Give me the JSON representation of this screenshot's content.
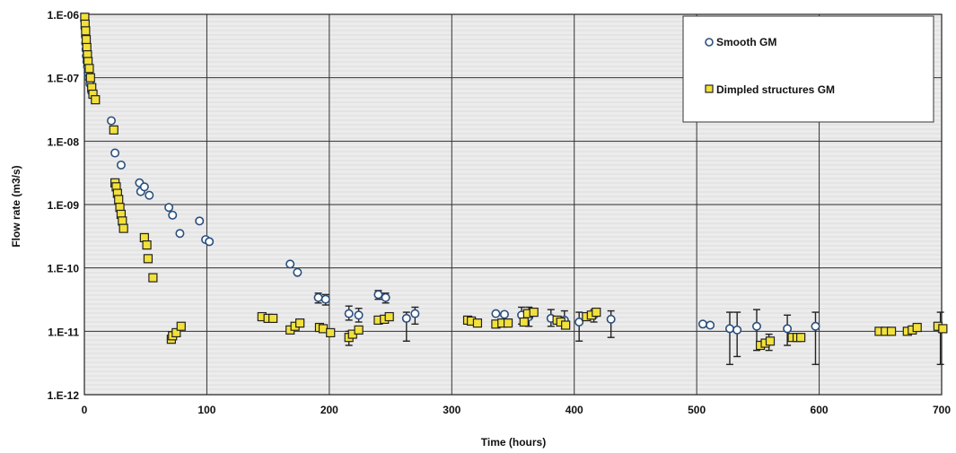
{
  "chart_data": {
    "type": "scatter",
    "title": "",
    "xlabel": "Time  (hours)",
    "ylabel": "Flow rate (m3/s)",
    "xlim": [
      0,
      700
    ],
    "ylim": [
      1e-12,
      1e-06
    ],
    "yscale": "log",
    "grid": true,
    "legend_position": "top-right",
    "x_ticks": [
      0,
      100,
      200,
      300,
      400,
      500,
      600,
      700
    ],
    "x_tick_labels": [
      "0",
      "100",
      "200",
      "300",
      "400",
      "500",
      "600",
      "700"
    ],
    "y_ticks": [
      1e-12,
      1e-11,
      1e-10,
      1e-09,
      1e-08,
      1e-07,
      1e-06
    ],
    "y_tick_labels": [
      "1.E-12",
      "1.E-11",
      "1.E-10",
      "1.E-09",
      "1.E-08",
      "1.E-07",
      "1.E-06"
    ],
    "colors": {
      "smooth_stroke": "#2a4f7f",
      "smooth_fill": "#ffffff",
      "dimpled_stroke": "#222222",
      "dimpled_fill": "#f2e13a",
      "grid": "#333333",
      "plot_background": "#ececec"
    },
    "series": [
      {
        "name": "Smooth GM",
        "marker": "circle",
        "points": [
          {
            "x": 0.3,
            "y": 8e-07
          },
          {
            "x": 0.5,
            "y": 6e-07
          },
          {
            "x": 0.8,
            "y": 4.5e-07
          },
          {
            "x": 1.0,
            "y": 3.5e-07
          },
          {
            "x": 1.3,
            "y": 2.8e-07
          },
          {
            "x": 1.6,
            "y": 2.2e-07
          },
          {
            "x": 2.0,
            "y": 1.8e-07
          },
          {
            "x": 2.5,
            "y": 1.5e-07
          },
          {
            "x": 3.0,
            "y": 1.2e-07
          },
          {
            "x": 3.5,
            "y": 1e-07
          },
          {
            "x": 4.5,
            "y": 8e-08
          },
          {
            "x": 6.0,
            "y": 6e-08
          },
          {
            "x": 22,
            "y": 2.1e-08
          },
          {
            "x": 25,
            "y": 6.5e-09
          },
          {
            "x": 30,
            "y": 4.2e-09
          },
          {
            "x": 45,
            "y": 2.2e-09
          },
          {
            "x": 46,
            "y": 1.6e-09
          },
          {
            "x": 49,
            "y": 1.9e-09
          },
          {
            "x": 53,
            "y": 1.4e-09
          },
          {
            "x": 69,
            "y": 9e-10
          },
          {
            "x": 72,
            "y": 6.8e-10
          },
          {
            "x": 78,
            "y": 3.5e-10
          },
          {
            "x": 94,
            "y": 5.5e-10
          },
          {
            "x": 99,
            "y": 2.8e-10
          },
          {
            "x": 102,
            "y": 2.6e-10
          },
          {
            "x": 168,
            "y": 1.15e-10
          },
          {
            "x": 174,
            "y": 8.5e-11
          },
          {
            "x": 191,
            "y": 3.4e-11,
            "err": [
              2.8e-11,
              4e-11
            ]
          },
          {
            "x": 197,
            "y": 3.2e-11,
            "err": [
              2.6e-11,
              3.8e-11
            ]
          },
          {
            "x": 216,
            "y": 1.9e-11,
            "err": [
              1.5e-11,
              2.5e-11
            ]
          },
          {
            "x": 224,
            "y": 1.8e-11,
            "err": [
              1.4e-11,
              2.3e-11
            ]
          },
          {
            "x": 240,
            "y": 3.8e-11,
            "err": [
              3.2e-11,
              4.4e-11
            ]
          },
          {
            "x": 246,
            "y": 3.4e-11,
            "err": [
              2.8e-11,
              4e-11
            ]
          },
          {
            "x": 263,
            "y": 1.6e-11,
            "err": [
              7e-12,
              2e-11
            ]
          },
          {
            "x": 270,
            "y": 1.9e-11,
            "err": [
              1.3e-11,
              2.4e-11
            ]
          },
          {
            "x": 336,
            "y": 1.9e-11
          },
          {
            "x": 343,
            "y": 1.85e-11
          },
          {
            "x": 357,
            "y": 1.8e-11,
            "err": [
              1.3e-11,
              2.4e-11
            ]
          },
          {
            "x": 363,
            "y": 1.7e-11,
            "err": [
              1.2e-11,
              2.4e-11
            ]
          },
          {
            "x": 381,
            "y": 1.6e-11,
            "err": [
              1.2e-11,
              2.2e-11
            ]
          },
          {
            "x": 392,
            "y": 1.5e-11,
            "err": [
              1.1e-11,
              2.1e-11
            ]
          },
          {
            "x": 404,
            "y": 1.4e-11,
            "err": [
              7e-12,
              2e-11
            ]
          },
          {
            "x": 416,
            "y": 1.8e-11,
            "err": [
              1.4e-11,
              2.2e-11
            ]
          },
          {
            "x": 430,
            "y": 1.55e-11,
            "err": [
              8e-12,
              2.1e-11
            ]
          },
          {
            "x": 505,
            "y": 1.3e-11
          },
          {
            "x": 511,
            "y": 1.25e-11
          },
          {
            "x": 527,
            "y": 1.1e-11,
            "err": [
              3e-12,
              2e-11
            ]
          },
          {
            "x": 533,
            "y": 1.05e-11,
            "err": [
              4e-12,
              2e-11
            ]
          },
          {
            "x": 549,
            "y": 1.2e-11,
            "err": [
              5e-12,
              2.2e-11
            ]
          },
          {
            "x": 559,
            "y": 7e-12,
            "err": [
              5e-12,
              9e-12
            ]
          },
          {
            "x": 574,
            "y": 1.1e-11,
            "err": [
              6e-12,
              1.8e-11
            ]
          },
          {
            "x": 597,
            "y": 1.2e-11,
            "err": [
              3e-12,
              2e-11
            ]
          },
          {
            "x": 699,
            "y": 1.1e-11,
            "err": [
              3e-12,
              2e-11
            ]
          }
        ]
      },
      {
        "name": "Dimpled structures GM",
        "marker": "square",
        "points": [
          {
            "x": 0.3,
            "y": 9e-07
          },
          {
            "x": 0.6,
            "y": 7e-07
          },
          {
            "x": 1.0,
            "y": 5.5e-07
          },
          {
            "x": 1.5,
            "y": 4e-07
          },
          {
            "x": 2.0,
            "y": 3e-07
          },
          {
            "x": 2.5,
            "y": 2.3e-07
          },
          {
            "x": 3.0,
            "y": 1.8e-07
          },
          {
            "x": 4.0,
            "y": 1.4e-07
          },
          {
            "x": 5.0,
            "y": 1e-07
          },
          {
            "x": 6.0,
            "y": 7e-08
          },
          {
            "x": 7.0,
            "y": 5.5e-08
          },
          {
            "x": 9.0,
            "y": 4.5e-08
          },
          {
            "x": 24,
            "y": 1.5e-08
          },
          {
            "x": 25,
            "y": 2.2e-09
          },
          {
            "x": 26,
            "y": 1.9e-09
          },
          {
            "x": 27,
            "y": 1.5e-09
          },
          {
            "x": 28,
            "y": 1.2e-09
          },
          {
            "x": 29,
            "y": 9e-10
          },
          {
            "x": 30,
            "y": 7e-10
          },
          {
            "x": 31,
            "y": 5.5e-10
          },
          {
            "x": 32,
            "y": 4.2e-10
          },
          {
            "x": 49,
            "y": 3e-10
          },
          {
            "x": 51,
            "y": 2.3e-10
          },
          {
            "x": 52,
            "y": 1.4e-10
          },
          {
            "x": 56,
            "y": 7e-11
          },
          {
            "x": 71,
            "y": 7.5e-12
          },
          {
            "x": 72,
            "y": 8.5e-12
          },
          {
            "x": 75,
            "y": 9.5e-12
          },
          {
            "x": 79,
            "y": 1.2e-11
          },
          {
            "x": 145,
            "y": 1.7e-11
          },
          {
            "x": 150,
            "y": 1.6e-11
          },
          {
            "x": 154,
            "y": 1.6e-11
          },
          {
            "x": 168,
            "y": 1.05e-11
          },
          {
            "x": 172,
            "y": 1.2e-11
          },
          {
            "x": 176,
            "y": 1.35e-11
          },
          {
            "x": 192,
            "y": 1.15e-11
          },
          {
            "x": 195,
            "y": 1.1e-11
          },
          {
            "x": 201,
            "y": 9.5e-12
          },
          {
            "x": 216,
            "y": 8e-12,
            "err": [
              6e-12,
              1e-11
            ]
          },
          {
            "x": 219,
            "y": 9e-12
          },
          {
            "x": 224,
            "y": 1.05e-11
          },
          {
            "x": 240,
            "y": 1.5e-11
          },
          {
            "x": 245,
            "y": 1.55e-11
          },
          {
            "x": 249,
            "y": 1.7e-11
          },
          {
            "x": 313,
            "y": 1.5e-11
          },
          {
            "x": 316,
            "y": 1.45e-11
          },
          {
            "x": 321,
            "y": 1.35e-11
          },
          {
            "x": 336,
            "y": 1.3e-11
          },
          {
            "x": 341,
            "y": 1.35e-11
          },
          {
            "x": 346,
            "y": 1.35e-11
          },
          {
            "x": 359,
            "y": 1.4e-11
          },
          {
            "x": 362,
            "y": 1.9e-11
          },
          {
            "x": 367,
            "y": 2e-11
          },
          {
            "x": 386,
            "y": 1.5e-11
          },
          {
            "x": 389,
            "y": 1.4e-11
          },
          {
            "x": 393,
            "y": 1.25e-11
          },
          {
            "x": 410,
            "y": 1.7e-11
          },
          {
            "x": 414,
            "y": 1.8e-11
          },
          {
            "x": 418,
            "y": 2e-11
          },
          {
            "x": 552,
            "y": 6e-12
          },
          {
            "x": 556,
            "y": 6.5e-12
          },
          {
            "x": 560,
            "y": 7e-12
          },
          {
            "x": 578,
            "y": 8e-12
          },
          {
            "x": 582,
            "y": 8e-12
          },
          {
            "x": 585,
            "y": 8e-12
          },
          {
            "x": 649,
            "y": 1e-11
          },
          {
            "x": 654,
            "y": 1e-11
          },
          {
            "x": 659,
            "y": 1e-11
          },
          {
            "x": 672,
            "y": 1e-11
          },
          {
            "x": 676,
            "y": 1.05e-11
          },
          {
            "x": 680,
            "y": 1.15e-11
          },
          {
            "x": 697,
            "y": 1.2e-11
          },
          {
            "x": 701,
            "y": 1.1e-11
          }
        ]
      }
    ]
  }
}
